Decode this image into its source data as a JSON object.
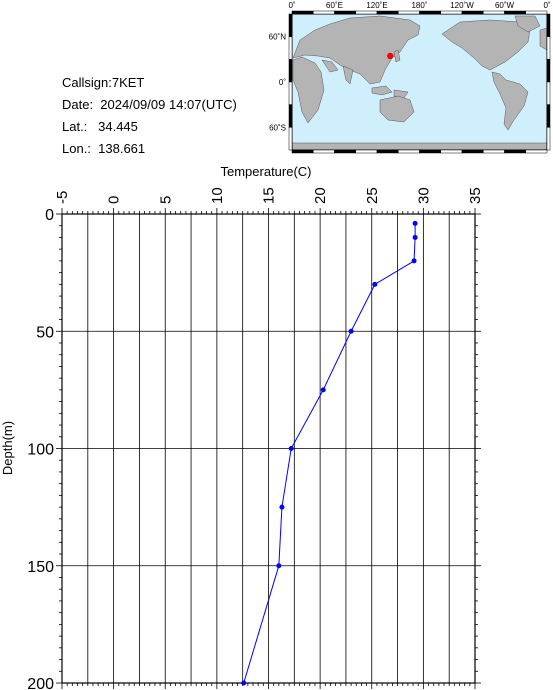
{
  "info": {
    "callsign": "Callsign:7KET",
    "date": "Date:  2024/09/09 14:07(UTC)",
    "lat": "Lat.:   34.445",
    "lon": "Lon.:  138.661"
  },
  "map": {
    "top_labels": [
      "0˚",
      "60˚E",
      "120˚E",
      "180˚",
      "120˚W",
      "60˚W",
      "0˚"
    ],
    "left_labels": [
      "60˚N",
      "0˚",
      "60˚S"
    ],
    "marker": {
      "lon": 138.661,
      "lat": 34.445,
      "color": "#ff0000"
    },
    "ocean_color": "#cfeffc",
    "land_color": "#b4b4b4"
  },
  "chart_data": {
    "type": "line",
    "xlabel": "Temperature(C)",
    "ylabel": "Depth(m)",
    "xlim": [
      -5,
      35
    ],
    "ylim": [
      0,
      200
    ],
    "y_inverted": true,
    "x_ticks": [
      "-5",
      "0",
      "5",
      "10",
      "15",
      "20",
      "25",
      "30",
      "35"
    ],
    "y_ticks": [
      "0",
      "50",
      "100",
      "150",
      "200"
    ],
    "grid": true,
    "series": [
      {
        "color": "#0000ff",
        "points": [
          {
            "t": 29.2,
            "d": 4
          },
          {
            "t": 29.2,
            "d": 10
          },
          {
            "t": 29.1,
            "d": 20
          },
          {
            "t": 25.3,
            "d": 30
          },
          {
            "t": 23.0,
            "d": 50
          },
          {
            "t": 20.3,
            "d": 75
          },
          {
            "t": 17.2,
            "d": 100
          },
          {
            "t": 16.3,
            "d": 125
          },
          {
            "t": 16.0,
            "d": 150
          },
          {
            "t": 12.6,
            "d": 200
          }
        ]
      }
    ]
  }
}
